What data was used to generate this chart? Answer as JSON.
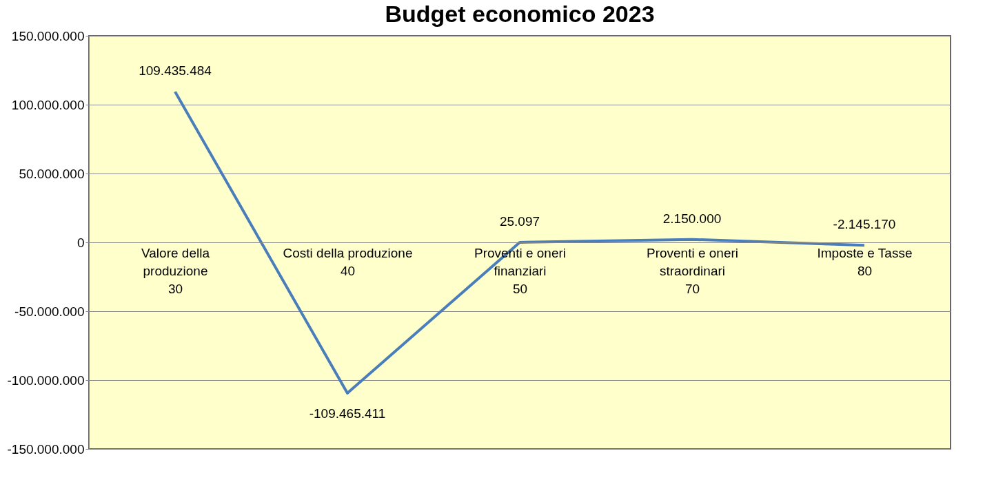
{
  "chart_data": {
    "type": "line",
    "title": "Budget economico 2023",
    "categories": [
      "Valore della produzione",
      "Costi della produzione",
      "Proventi e oneri finanziari",
      "Proventi e oneri straordinari",
      "Imposte e Tasse"
    ],
    "annotations": [
      "30",
      "40",
      "50",
      "70",
      "80"
    ],
    "series": [
      {
        "color": "#4a7ebb",
        "values": [
          109435484,
          -109465411,
          25097,
          2150000,
          -2145170
        ],
        "value_labels": [
          "109.435.484",
          "-109.465.411",
          "25.097",
          "2.150.000",
          "-2.145.170"
        ]
      }
    ],
    "ylim": [
      -150000000,
      150000000
    ],
    "yticks": [
      {
        "value": -150000000,
        "label": "-150.000.000"
      },
      {
        "value": -100000000,
        "label": "-100.000.000"
      },
      {
        "value": -50000000,
        "label": "-50.000.000"
      },
      {
        "value": 0,
        "label": "0"
      },
      {
        "value": 50000000,
        "label": "50.000.000"
      },
      {
        "value": 100000000,
        "label": "100.000.000"
      },
      {
        "value": 150000000,
        "label": "150.000.000"
      }
    ],
    "grid": "y",
    "legend": false,
    "marker": "none",
    "line_style": "solid"
  }
}
